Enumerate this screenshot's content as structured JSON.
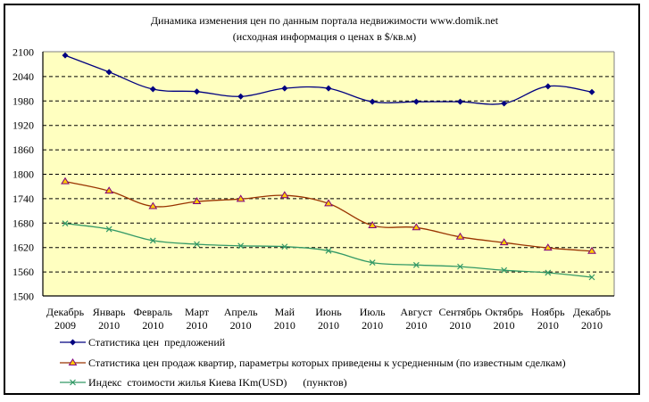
{
  "chart_data": {
    "type": "line",
    "title": "Динамика изменения цен по данным портала недвижимости www.domik.net",
    "subtitle": "(исходная информация о ценах в $/кв.м)",
    "xlabel": "",
    "ylabel": "",
    "ylim": [
      1500,
      2100
    ],
    "yticks": [
      "1500",
      "1560",
      "1620",
      "1680",
      "1740",
      "1800",
      "1860",
      "1920",
      "1980",
      "2040",
      "2100"
    ],
    "ytick_values": [
      1500,
      1560,
      1620,
      1680,
      1740,
      1800,
      1860,
      1920,
      1980,
      2040,
      2100
    ],
    "grid": "horizontal dashed",
    "legend_position": "bottom",
    "categories": [
      {
        "month": "Декабрь",
        "year": "2009"
      },
      {
        "month": "Январь",
        "year": "2010"
      },
      {
        "month": "Февраль",
        "year": "2010"
      },
      {
        "month": "Март",
        "year": "2010"
      },
      {
        "month": "Апрель",
        "year": "2010"
      },
      {
        "month": "Май",
        "year": "2010"
      },
      {
        "month": "Июнь",
        "year": "2010"
      },
      {
        "month": "Июль",
        "year": "2010"
      },
      {
        "month": "Август",
        "year": "2010"
      },
      {
        "month": "Сентябрь",
        "year": "2010"
      },
      {
        "month": "Октябрь",
        "year": "2010"
      },
      {
        "month": "Ноябрь",
        "year": "2010"
      },
      {
        "month": "Декабрь",
        "year": "2010"
      }
    ],
    "series": [
      {
        "name": "Статистика цен  предложений",
        "color": "#000080",
        "marker": "diamond",
        "values": [
          2091,
          2050,
          2008,
          2002,
          1990,
          2010,
          2010,
          1977,
          1977,
          1977,
          1973,
          2015,
          2001
        ]
      },
      {
        "name": "Статистика цен продаж квартир, параметры которых приведены к усредненным (по известным сделкам)",
        "color": "#993300",
        "marker": "triangle",
        "marker_fill": "#ffcc00",
        "marker_stroke": "#800080",
        "values": [
          1781,
          1758,
          1720,
          1732,
          1738,
          1747,
          1727,
          1673,
          1668,
          1645,
          1631,
          1618,
          1610
        ]
      },
      {
        "name": "Индекс  стоимости жилья Киева IKm(USD)      (пунктов)",
        "color": "#339966",
        "marker": "star",
        "values": [
          1678,
          1664,
          1636,
          1627,
          1623,
          1621,
          1611,
          1582,
          1576,
          1572,
          1563,
          1557,
          1546
        ]
      }
    ],
    "plot_background": "#ffffc0",
    "grid_color": "#000000"
  }
}
